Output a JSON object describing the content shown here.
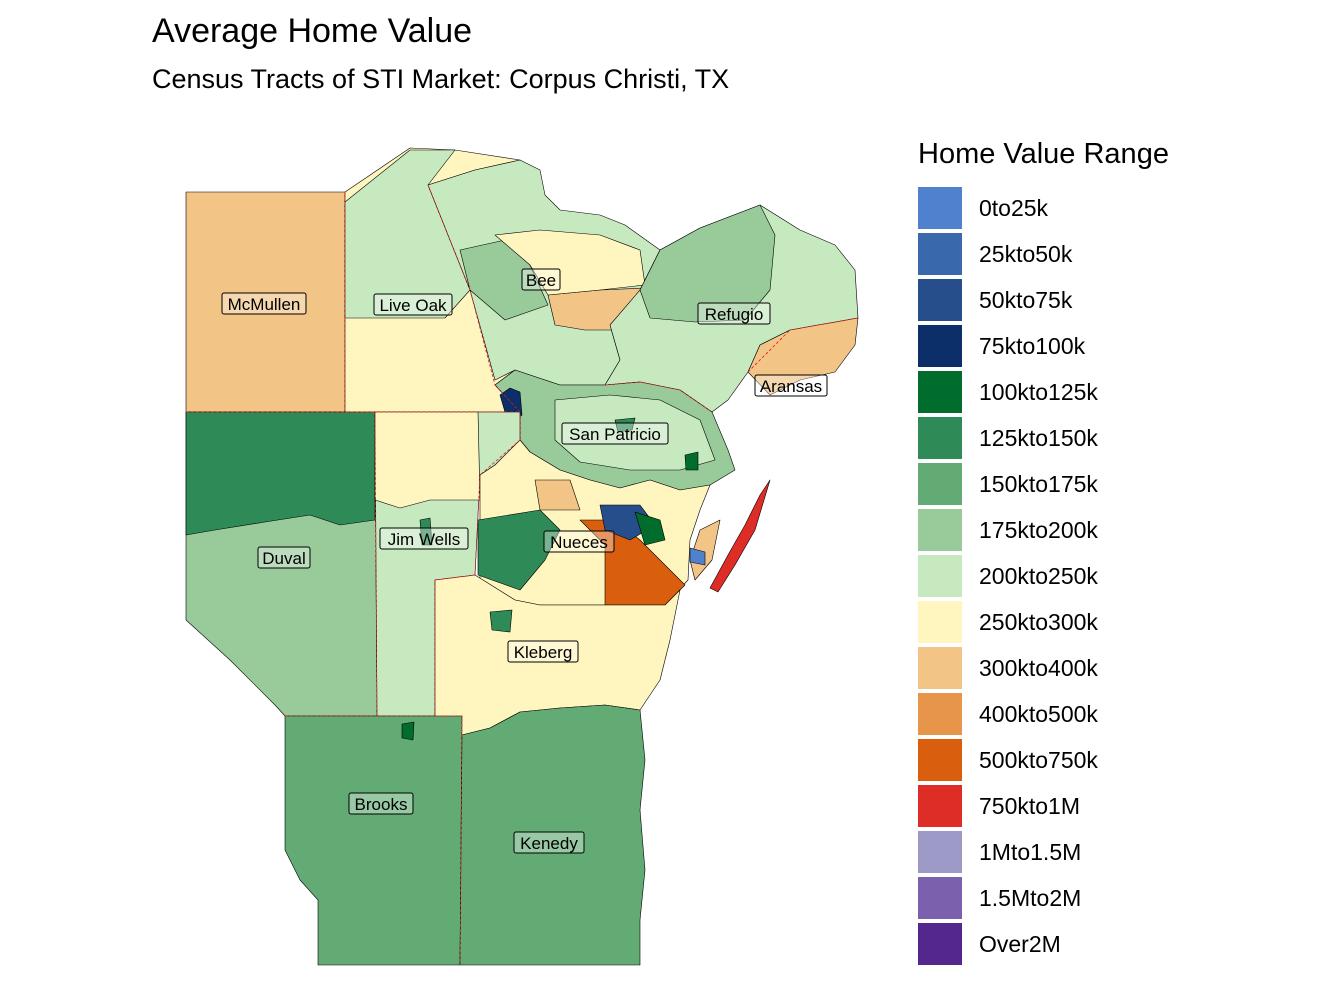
{
  "title": "Average Home Value",
  "subtitle": "Census Tracts of STI Market: Corpus Christi, TX",
  "legend": {
    "title": "Home Value Range",
    "items": [
      {
        "label": "0to25k",
        "color": "#4f81cf"
      },
      {
        "label": "25kto50k",
        "color": "#3a68ad"
      },
      {
        "label": "50kto75k",
        "color": "#254e8b"
      },
      {
        "label": "75kto100k",
        "color": "#0c2f6a"
      },
      {
        "label": "100kto125k",
        "color": "#006d2c"
      },
      {
        "label": "125kto150k",
        "color": "#2e8b57"
      },
      {
        "label": "150kto175k",
        "color": "#62ab74"
      },
      {
        "label": "175kto200k",
        "color": "#98ca9a"
      },
      {
        "label": "200kto250k",
        "color": "#c7e9c0"
      },
      {
        "label": "250kto300k",
        "color": "#fff5bf"
      },
      {
        "label": "300kto400k",
        "color": "#f2c486"
      },
      {
        "label": "400kto500k",
        "color": "#e6954b"
      },
      {
        "label": "500kto750k",
        "color": "#d95f0e"
      },
      {
        "label": "750kto1M",
        "color": "#de2d26"
      },
      {
        "label": "1Mto1.5M",
        "color": "#9e9ac8"
      },
      {
        "label": "1.5Mto2M",
        "color": "#7b60ad"
      },
      {
        "label": "Over2M",
        "color": "#54278f"
      }
    ]
  },
  "counties": {
    "mcmullen": {
      "name": "McMullen",
      "range": "300kto400k"
    },
    "live_oak": {
      "name": "Live Oak",
      "range": "250kto300k"
    },
    "bee": {
      "name": "Bee",
      "range": "200kto250k"
    },
    "refugio": {
      "name": "Refugio",
      "range": "200kto250k"
    },
    "aransas": {
      "name": "Aransas",
      "range": "300kto400k"
    },
    "san_patricio": {
      "name": "San Patricio",
      "range": "175kto200k"
    },
    "duval": {
      "name": "Duval",
      "range": "175kto200k"
    },
    "jim_wells": {
      "name": "Jim Wells",
      "range": "200kto250k"
    },
    "nueces": {
      "name": "Nueces",
      "range": "500kto750k"
    },
    "kleberg": {
      "name": "Kleberg",
      "range": "250kto300k"
    },
    "brooks": {
      "name": "Brooks",
      "range": "150kto175k"
    },
    "kenedy": {
      "name": "Kenedy",
      "range": "150kto175k"
    }
  }
}
